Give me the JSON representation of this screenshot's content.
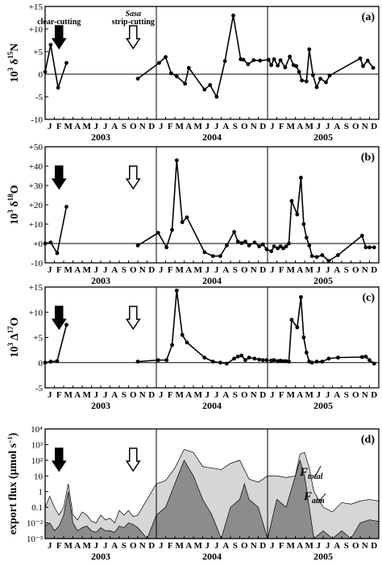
{
  "months": [
    "J",
    "F",
    "M",
    "A",
    "M",
    "J",
    "J",
    "A",
    "S",
    "O",
    "N",
    "D",
    "J",
    "F",
    "M",
    "A",
    "M",
    "J",
    "J",
    "A",
    "S",
    "O",
    "N",
    "D",
    "J",
    "F",
    "M",
    "A",
    "M",
    "J",
    "J",
    "A",
    "S",
    "O",
    "N",
    "D"
  ],
  "years": [
    "2003",
    "2004",
    "2005"
  ],
  "annotations": {
    "clear_cutting": "clear-cutting",
    "sasa_word": "Sasa",
    "strip_cutting": "strip-cutting",
    "clear_month_index": 1,
    "strip_month_index": 9
  },
  "colors": {
    "line": "#000000",
    "total_fill": "#d6d6d6",
    "atm_fill": "#8c8c8c",
    "frame": "#000000"
  },
  "chart_data": [
    {
      "type": "line",
      "panel_label": "(a)",
      "ylabel_prefix": "10",
      "ylabel_exp": "3",
      "ylabel_main": " δ",
      "ylabel_sup": "15",
      "ylabel_tail": "N",
      "ylim": [
        -10,
        15
      ],
      "yticks": [
        "+15",
        "+10",
        "+5",
        "0",
        "-5",
        "-10"
      ],
      "ytick_values": [
        15,
        10,
        5,
        0,
        -5,
        -10
      ],
      "series": [
        {
          "x": [
            0,
            0.6,
            1.4,
            2.3
          ],
          "y": [
            0.5,
            6.5,
            -3.0,
            2.5
          ]
        },
        {
          "x": [
            10.0,
            12.3,
            13.0,
            13.6,
            14.2,
            15.1,
            15.5,
            17.2,
            17.8,
            18.5,
            19.4,
            20.3,
            21.1,
            21.4,
            21.9,
            22.5,
            23.2,
            24.1,
            24.4,
            24.7,
            25.1,
            25.4,
            25.9,
            26.4,
            26.8,
            27.1,
            27.4,
            27.7,
            28.2,
            28.5,
            28.9,
            29.3,
            29.7,
            30.3,
            30.7,
            34.0,
            34.3,
            34.8,
            35.4
          ],
          "y": [
            -1.0,
            2.5,
            3.8,
            0.2,
            -0.5,
            -2.1,
            1.4,
            -3.4,
            -2.4,
            -5.0,
            2.9,
            13.0,
            3.3,
            3.2,
            2.2,
            3.1,
            3.0,
            3.2,
            2.0,
            3.3,
            1.9,
            3.1,
            1.5,
            3.9,
            2.0,
            1.8,
            0.5,
            -1.4,
            -1.6,
            5.5,
            -0.2,
            -2.9,
            -1.0,
            -1.8,
            -0.3,
            3.5,
            1.8,
            3.0,
            1.4
          ]
        }
      ]
    },
    {
      "type": "line",
      "panel_label": "(b)",
      "ylabel_prefix": "10",
      "ylabel_exp": "3",
      "ylabel_main": " δ",
      "ylabel_sup": "18",
      "ylabel_tail": "O",
      "ylim": [
        -10,
        50
      ],
      "yticks": [
        "+50",
        "+40",
        "+30",
        "+20",
        "+10",
        "+0",
        "-10"
      ],
      "ytick_values": [
        50,
        40,
        30,
        20,
        10,
        0,
        -10
      ],
      "series": [
        {
          "x": [
            0,
            0.6,
            1.3,
            2.3
          ],
          "y": [
            0,
            0.5,
            -5.0,
            19.0
          ]
        },
        {
          "x": [
            10.0,
            12.2,
            13.1,
            13.7,
            14.2,
            14.8,
            15.3,
            17.2,
            18.1,
            18.9,
            19.6,
            20.4,
            20.8,
            21.2,
            21.6,
            22.0,
            22.6,
            23.1,
            23.5,
            23.9,
            24.4,
            24.7,
            25.1,
            25.4,
            25.7,
            26.0,
            26.3,
            26.6,
            27.2,
            27.6,
            27.9,
            28.2,
            28.5,
            28.8,
            29.3,
            29.9,
            30.6,
            31.6,
            34.2,
            34.6,
            35.0,
            35.5
          ],
          "y": [
            -1.0,
            5.5,
            -2.0,
            7.0,
            43.0,
            11.0,
            13.5,
            -4.5,
            -6.5,
            -6.5,
            -1.0,
            6.0,
            1.0,
            0.2,
            1.0,
            -1.0,
            0.5,
            -1.5,
            -0.5,
            -3.0,
            -4.0,
            -1.5,
            -2.5,
            -1.5,
            -2.5,
            -1.5,
            0.0,
            22.0,
            15.0,
            34.0,
            10.0,
            3.0,
            -1.0,
            -6.5,
            -7.0,
            -6.0,
            -9.0,
            -6.0,
            4.0,
            -2.0,
            -2.0,
            -2.0
          ]
        }
      ]
    },
    {
      "type": "line",
      "panel_label": "(c)",
      "ylabel_prefix": "10",
      "ylabel_exp": "3",
      "ylabel_main": " Δ",
      "ylabel_sup": "17",
      "ylabel_tail": "O",
      "ylim": [
        -5,
        15
      ],
      "yticks": [
        "+15",
        "+10",
        "+5",
        "0",
        "-5"
      ],
      "ytick_values": [
        15,
        10,
        5,
        0,
        -5
      ],
      "series": [
        {
          "x": [
            0,
            0.6,
            1.3,
            2.3
          ],
          "y": [
            0,
            0.2,
            0.3,
            7.5
          ]
        },
        {
          "x": [
            10.0,
            12.2,
            13.1,
            13.7,
            14.2,
            14.8,
            15.3,
            17.2,
            18.1,
            18.9,
            19.6,
            20.4,
            20.8,
            21.2,
            21.6,
            22.0,
            22.6,
            23.1,
            23.5,
            23.9,
            24.4,
            24.7,
            25.1,
            25.4,
            25.7,
            26.0,
            26.3,
            26.6,
            27.2,
            27.6,
            27.9,
            28.2,
            28.5,
            28.8,
            29.3,
            29.9,
            30.6,
            31.6,
            34.2,
            34.6,
            35.0,
            35.5
          ],
          "y": [
            0.2,
            0.5,
            0.5,
            3.5,
            14.3,
            5.5,
            4.0,
            1.0,
            0.2,
            0.0,
            -0.2,
            0.8,
            1.2,
            1.4,
            0.5,
            1.0,
            0.8,
            0.6,
            0.5,
            0.5,
            0.4,
            0.5,
            0.3,
            0.4,
            0.3,
            0.3,
            0.2,
            8.5,
            7.0,
            13.0,
            5.0,
            2.0,
            0.2,
            0.0,
            0.2,
            0.2,
            0.8,
            1.0,
            1.1,
            1.2,
            0.5,
            -0.2
          ]
        }
      ]
    },
    {
      "type": "area",
      "panel_label": "(d)",
      "ylabel": "export flux (μmol s",
      "ylabel_exp": "−1",
      "ylabel_end": ")",
      "ylim_log10": [
        -3,
        4
      ],
      "yticks": [
        "10⁴",
        "10³",
        "10²",
        "10",
        "1",
        "0.1",
        "10⁻²",
        "10⁻³"
      ],
      "ytick_values": [
        4,
        3,
        2,
        1,
        0,
        -1,
        -2,
        -3
      ],
      "series": [
        {
          "name": "Ftotal",
          "name_main": "F",
          "name_sub": "total",
          "x": [
            0,
            0.5,
            1.0,
            1.5,
            2.0,
            2.5,
            3.0,
            3.5,
            4.0,
            4.5,
            5.0,
            5.5,
            6.0,
            6.5,
            7.0,
            7.5,
            8.0,
            8.5,
            9.0,
            9.5,
            10.0,
            11.0,
            12.0,
            13.0,
            14.0,
            15.0,
            16.0,
            17.0,
            18.0,
            19.0,
            20.0,
            21.0,
            22.0,
            23.0,
            24.0,
            25.0,
            26.0,
            27.0,
            27.5,
            28.0,
            28.5,
            29.0,
            30.0,
            31.0,
            32.0,
            33.0,
            34.0,
            35.0,
            36.0
          ],
          "log10_y": [
            -1.0,
            -0.3,
            -1.0,
            -1.5,
            -1.0,
            0.5,
            -1.5,
            -1.8,
            -1.3,
            -1.5,
            -1.9,
            -2.0,
            -1.5,
            -1.8,
            -1.7,
            -2.0,
            -1.2,
            -1.5,
            -1.2,
            -1.6,
            -1.5,
            -0.5,
            0.5,
            0.7,
            1.5,
            2.7,
            2.5,
            1.6,
            1.5,
            1.4,
            1.8,
            2.0,
            0.8,
            0.6,
            1.0,
            1.0,
            0.9,
            1.0,
            2.4,
            2.5,
            1.5,
            0.0,
            -1.0,
            -1.3,
            -0.7,
            -0.8,
            -0.6,
            -0.5,
            -0.6
          ]
        },
        {
          "name": "Fatm",
          "name_main": "F",
          "name_sub": "atm",
          "x": [
            0,
            0.5,
            1.0,
            1.5,
            2.0,
            2.5,
            3.0,
            3.5,
            4.0,
            4.5,
            5.0,
            5.5,
            6.0,
            6.5,
            7.0,
            7.5,
            8.0,
            8.5,
            9.0,
            9.5,
            10.0,
            11.0,
            12.0,
            13.0,
            14.0,
            15.0,
            16.0,
            17.0,
            18.0,
            19.0,
            20.0,
            21.0,
            21.5,
            22.0,
            23.0,
            24.0,
            25.0,
            26.0,
            27.0,
            27.5,
            28.0,
            28.5,
            29.0,
            30.0,
            31.0,
            32.0,
            33.0,
            34.0,
            35.0,
            36.0
          ],
          "log10_y": [
            -2.2,
            -2.0,
            -2.5,
            -2.2,
            -1.5,
            0.0,
            -2.0,
            -2.5,
            -2.3,
            -2.2,
            -2.5,
            -2.6,
            -2.3,
            -2.5,
            -2.5,
            -2.6,
            -2.2,
            -2.3,
            -2.0,
            -2.1,
            -2.3,
            -3.0,
            -1.5,
            -1.0,
            0.5,
            2.0,
            1.0,
            -0.5,
            -1.5,
            -3.0,
            -1.0,
            -0.5,
            0.5,
            -0.5,
            -1.0,
            -3.0,
            -0.5,
            -1.0,
            1.0,
            2.0,
            1.0,
            -1.0,
            -3.0,
            -2.5,
            -3.0,
            -2.5,
            -3.0,
            -2.0,
            -1.8,
            -1.9
          ]
        }
      ]
    }
  ]
}
